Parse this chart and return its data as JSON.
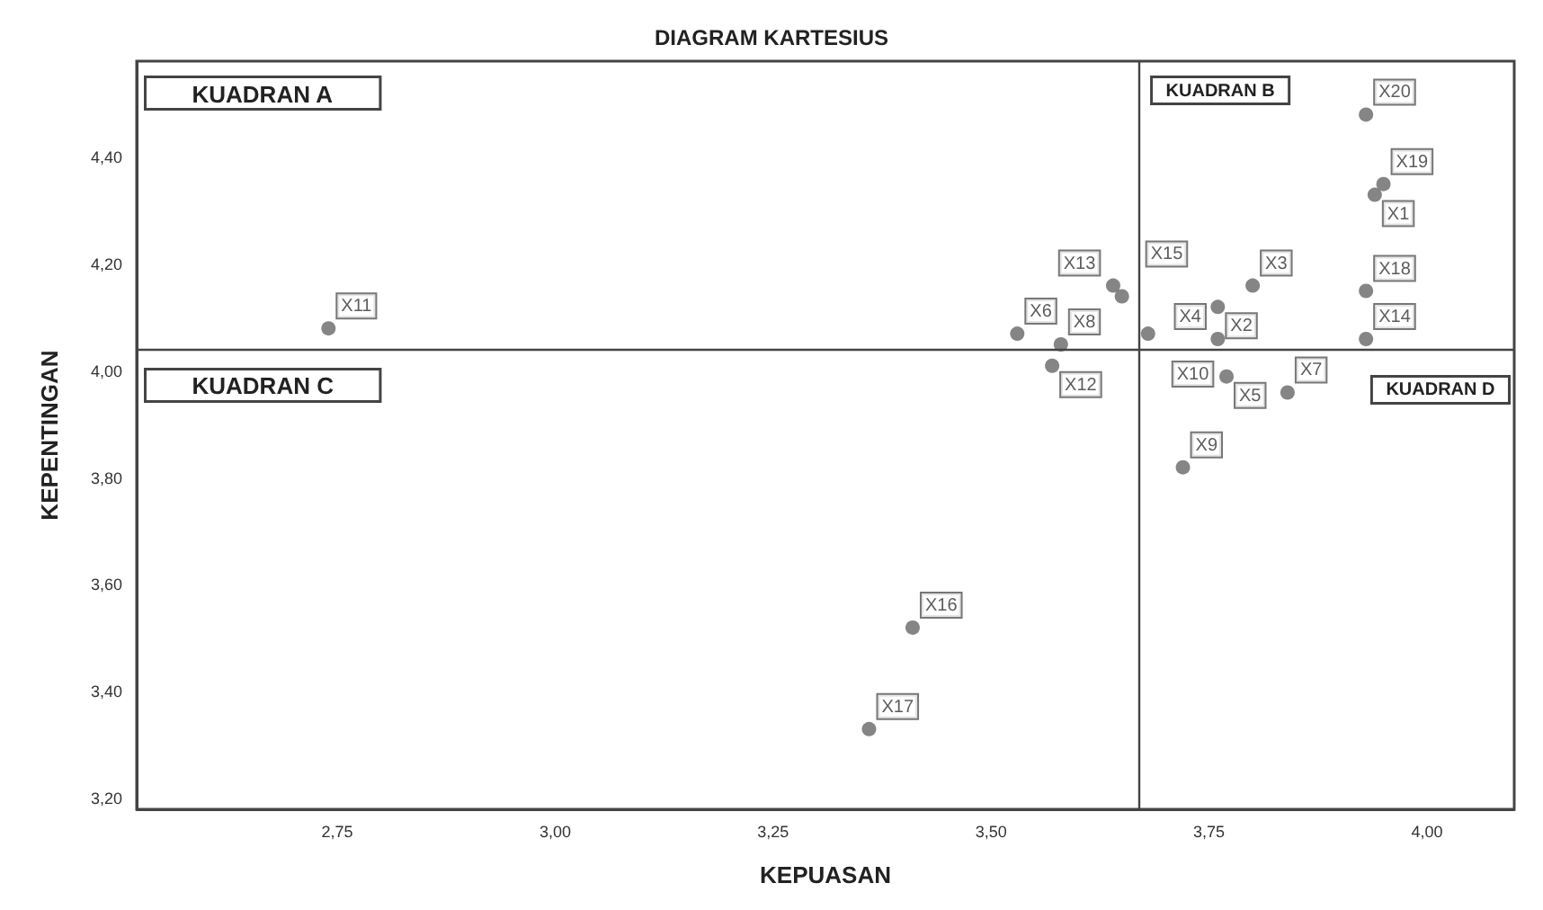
{
  "chart_data": {
    "type": "scatter",
    "title": "DIAGRAM KARTESIUS",
    "xlabel": "KEPUASAN",
    "ylabel": "KEPENTINGAN",
    "x": [
      3.94,
      3.76,
      3.8,
      3.76,
      3.77,
      3.53,
      3.84,
      3.58,
      3.72,
      3.68,
      2.74,
      3.57,
      3.64,
      3.93,
      3.65,
      3.41,
      3.36,
      3.93,
      3.95,
      3.93
    ],
    "values": [
      4.33,
      4.12,
      4.16,
      4.06,
      3.99,
      4.07,
      3.96,
      4.05,
      3.82,
      4.07,
      4.08,
      4.01,
      4.16,
      4.06,
      4.14,
      3.52,
      3.33,
      4.15,
      4.35,
      4.48
    ],
    "color": "#666666",
    "marker": "circle",
    "grid": false,
    "xlim": [
      2.52,
      4.1
    ],
    "ylim": [
      3.18,
      4.58
    ],
    "xticks": [
      {
        "value": 2.75,
        "label": "2,75"
      },
      {
        "value": 3.0,
        "label": "3,00"
      },
      {
        "value": 3.25,
        "label": "3,25"
      },
      {
        "value": 3.5,
        "label": "3,50"
      },
      {
        "value": 3.75,
        "label": "3,75"
      },
      {
        "value": 4.0,
        "label": "4,00"
      }
    ],
    "yticks": [
      {
        "value": 3.2,
        "label": "3,20"
      },
      {
        "value": 3.4,
        "label": "3,40"
      },
      {
        "value": 3.6,
        "label": "3,60"
      },
      {
        "value": 3.8,
        "label": "3,80"
      },
      {
        "value": 4.0,
        "label": "4,00"
      },
      {
        "value": 4.2,
        "label": "4,20"
      },
      {
        "value": 4.4,
        "label": "4,40"
      }
    ],
    "ref_lines": [
      {
        "axis": "x",
        "value": 3.67,
        "color": "#444444"
      },
      {
        "axis": "y",
        "value": 4.04,
        "color": "#444444"
      }
    ],
    "annotations": [
      "KUADRAN A",
      "KUADRAN B",
      "KUADRAN C",
      "KUADRAN D",
      {
        "text": "X1",
        "x": 3.94,
        "y": 4.33
      },
      {
        "text": "X2",
        "x": 3.76,
        "y": 4.12
      },
      {
        "text": "X3",
        "x": 3.8,
        "y": 4.16
      },
      {
        "text": "X4",
        "x": 3.76,
        "y": 4.06
      },
      {
        "text": "X5",
        "x": 3.77,
        "y": 3.99
      },
      {
        "text": "X6",
        "x": 3.53,
        "y": 4.07
      },
      {
        "text": "X7",
        "x": 3.84,
        "y": 3.96
      },
      {
        "text": "X8",
        "x": 3.58,
        "y": 4.05
      },
      {
        "text": "X9",
        "x": 3.72,
        "y": 3.82
      },
      {
        "text": "X10",
        "x": 3.68,
        "y": 4.07
      },
      {
        "text": "X11",
        "x": 2.74,
        "y": 4.08
      },
      {
        "text": "X12",
        "x": 3.57,
        "y": 4.01
      },
      {
        "text": "X13",
        "x": 3.64,
        "y": 4.16
      },
      {
        "text": "X14",
        "x": 3.93,
        "y": 4.06
      },
      {
        "text": "X15",
        "x": 3.65,
        "y": 4.14
      },
      {
        "text": "X16",
        "x": 3.41,
        "y": 3.52
      },
      {
        "text": "X17",
        "x": 3.36,
        "y": 3.33
      },
      {
        "text": "X18",
        "x": 3.93,
        "y": 4.15
      },
      {
        "text": "X19",
        "x": 3.95,
        "y": 4.35
      },
      {
        "text": "X20",
        "x": 3.93,
        "y": 4.48
      }
    ]
  }
}
